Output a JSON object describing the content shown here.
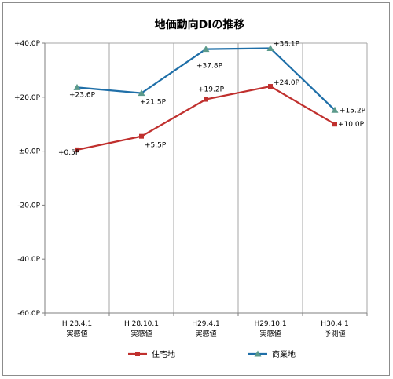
{
  "chart_data": {
    "type": "line",
    "title": "地価動向DIの推移",
    "categories": [
      [
        "H 28.4.1",
        "実感値"
      ],
      [
        "H 28.10.1",
        "実感値"
      ],
      [
        "H29.4.1",
        "実感値"
      ],
      [
        "H29.10.1",
        "実感値"
      ],
      [
        "H30.4.1",
        "予測値"
      ]
    ],
    "ylim": [
      -60,
      40
    ],
    "yticks": [
      {
        "value": 40,
        "label": "+40.0P"
      },
      {
        "value": 20,
        "label": "+20.0P"
      },
      {
        "value": 0,
        "label": "±0.0P"
      },
      {
        "value": -20,
        "label": "-20.0P"
      },
      {
        "value": -40,
        "label": "-40.0P"
      },
      {
        "value": -60,
        "label": "-60.0P"
      }
    ],
    "grid": "vertical",
    "legend_position": "bottom",
    "series": [
      {
        "name": "住宅地",
        "color": "#c0302e",
        "marker": "square",
        "values": [
          0.5,
          5.5,
          19.2,
          24.0,
          10.0
        ],
        "labels": [
          "+0.5P",
          "+5.5P",
          "+19.2P",
          "+24.0P",
          "+10.0P"
        ]
      },
      {
        "name": "商業地",
        "color": "#1f6fa8",
        "marker_color": "#5b9a8b",
        "marker": "triangle",
        "values": [
          23.6,
          21.5,
          37.8,
          38.1,
          15.2
        ],
        "labels": [
          "+23.6P",
          "+21.5P",
          "+37.8P",
          "+38.1P",
          "+15.2P"
        ]
      }
    ]
  }
}
